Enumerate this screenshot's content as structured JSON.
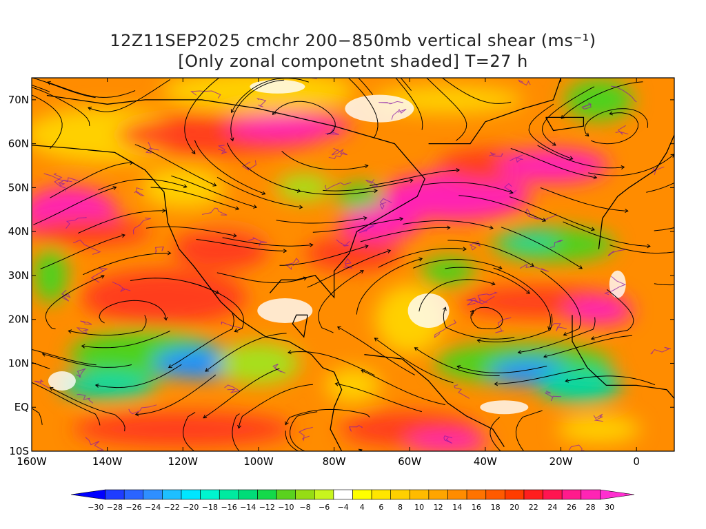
{
  "title": {
    "line1": "12Z11SEP2025 cmchr 200−850mb vertical shear (ms⁻¹)",
    "line2": "[Only zonal componetnt shaded] T=27 h"
  },
  "map": {
    "lon_range": [
      -160,
      10
    ],
    "lat_range": [
      -10,
      75
    ],
    "lat_ticks": [
      {
        "value": 70,
        "label": "70N"
      },
      {
        "value": 60,
        "label": "60N"
      },
      {
        "value": 50,
        "label": "50N"
      },
      {
        "value": 40,
        "label": "40N"
      },
      {
        "value": 30,
        "label": "30N"
      },
      {
        "value": 20,
        "label": "20N"
      },
      {
        "value": 10,
        "label": "10N"
      },
      {
        "value": 0,
        "label": "EQ"
      },
      {
        "value": -10,
        "label": "10S"
      }
    ],
    "lon_ticks": [
      {
        "value": -160,
        "label": "160W"
      },
      {
        "value": -140,
        "label": "140W"
      },
      {
        "value": -120,
        "label": "120W"
      },
      {
        "value": -100,
        "label": "100W"
      },
      {
        "value": -80,
        "label": "80W"
      },
      {
        "value": -60,
        "label": "60W"
      },
      {
        "value": -40,
        "label": "40W"
      },
      {
        "value": -20,
        "label": "20W"
      },
      {
        "value": 0,
        "label": "0"
      }
    ]
  },
  "colorbar": {
    "colors": [
      "#0000ff",
      "#1e3cff",
      "#2a64ff",
      "#2f8fff",
      "#1ebfff",
      "#00e6ff",
      "#00f5d0",
      "#00eaa0",
      "#00dc78",
      "#14d94a",
      "#5ad21e",
      "#96dc14",
      "#c8f51e",
      "#ffffff",
      "#ffff00",
      "#ffe600",
      "#ffd000",
      "#ffbb00",
      "#ffa500",
      "#ff8c00",
      "#ff7300",
      "#ff5a00",
      "#ff3c00",
      "#ff1e1e",
      "#ff1450",
      "#ff1a8c",
      "#ff24b4",
      "#ff2fd0"
    ],
    "labels": [
      "−30",
      "−28",
      "−26",
      "−24",
      "−22",
      "−20",
      "−18",
      "−16",
      "−14",
      "−12",
      "−10",
      "−8",
      "−6",
      "−4",
      "4",
      "6",
      "8",
      "10",
      "12",
      "14",
      "16",
      "18",
      "20",
      "22",
      "24",
      "26",
      "28",
      "30"
    ]
  },
  "shading_colors": {
    "magenta": "#ff24b4",
    "red": "#ff3c1e",
    "orange": "#ff8c00",
    "yellow": "#ffd000",
    "green": "#4ed21e",
    "lime": "#a6e01a",
    "teal": "#00d8a0",
    "blue": "#1e8fff",
    "purple": "#8a1aa8"
  }
}
